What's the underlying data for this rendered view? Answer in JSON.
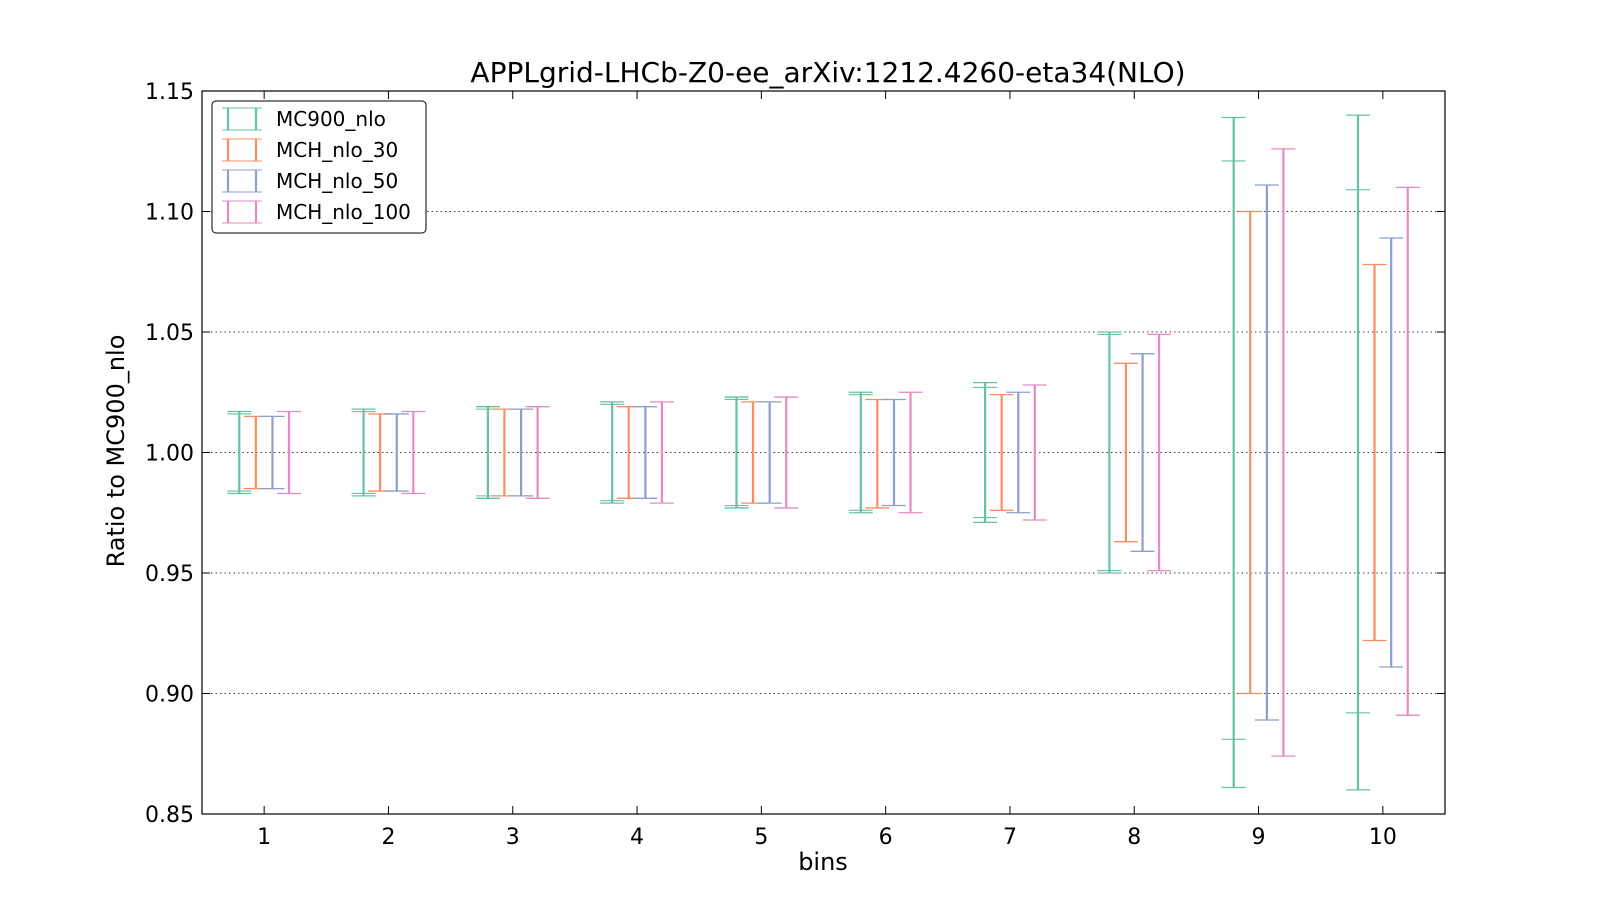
{
  "chart_data": {
    "type": "errorbar",
    "title": "APPLgrid-LHCb-Z0-ee_arXiv:1212.4260-eta34(NLO)",
    "xlabel": "bins",
    "ylabel": "Ratio to MC900_nlo",
    "ylim": [
      0.85,
      1.15
    ],
    "xlim": [
      0.5,
      10.5
    ],
    "yticks": [
      "0.85",
      "0.90",
      "0.95",
      "1.00",
      "1.05",
      "1.10",
      "1.15"
    ],
    "xticks": [
      "1",
      "2",
      "3",
      "4",
      "5",
      "6",
      "7",
      "8",
      "9",
      "10"
    ],
    "grid": "horizontal-dotted",
    "legend_position": "top-left",
    "series": [
      {
        "name": "MC900_nlo",
        "color": "#66c2a5",
        "offset": -0.2,
        "low": [
          0.983,
          0.982,
          0.981,
          0.979,
          0.977,
          0.975,
          0.971,
          0.95,
          0.861,
          0.86
        ],
        "high": [
          1.017,
          1.018,
          1.019,
          1.021,
          1.023,
          1.025,
          1.029,
          1.05,
          1.139,
          1.14
        ],
        "inner_low": [
          0.984,
          0.983,
          0.982,
          0.98,
          0.978,
          0.976,
          0.973,
          0.951,
          0.881,
          0.892
        ],
        "inner_high": [
          1.016,
          1.017,
          1.018,
          1.02,
          1.022,
          1.024,
          1.027,
          1.049,
          1.121,
          1.109
        ]
      },
      {
        "name": "MCH_nlo_30",
        "color": "#fc8d62",
        "offset": -0.067,
        "low": [
          0.985,
          0.984,
          0.982,
          0.981,
          0.979,
          0.977,
          0.976,
          0.963,
          0.9,
          0.922
        ],
        "high": [
          1.015,
          1.016,
          1.018,
          1.019,
          1.021,
          1.022,
          1.024,
          1.037,
          1.1,
          1.078
        ]
      },
      {
        "name": "MCH_nlo_50",
        "color": "#8da0cb",
        "offset": 0.067,
        "low": [
          0.985,
          0.984,
          0.982,
          0.981,
          0.979,
          0.978,
          0.975,
          0.959,
          0.889,
          0.911
        ],
        "high": [
          1.015,
          1.016,
          1.018,
          1.019,
          1.021,
          1.022,
          1.025,
          1.041,
          1.111,
          1.089
        ]
      },
      {
        "name": "MCH_nlo_100",
        "color": "#e78ac3",
        "offset": 0.2,
        "low": [
          0.983,
          0.983,
          0.981,
          0.979,
          0.977,
          0.975,
          0.972,
          0.951,
          0.874,
          0.891
        ],
        "high": [
          1.017,
          1.017,
          1.019,
          1.021,
          1.023,
          1.025,
          1.028,
          1.049,
          1.126,
          1.11
        ]
      }
    ]
  }
}
